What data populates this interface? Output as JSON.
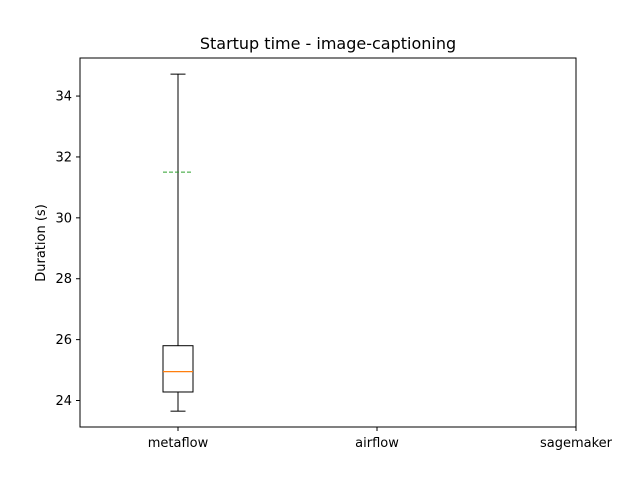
{
  "chart_data": {
    "type": "box",
    "title": "Startup time - image-captioning",
    "xlabel": "",
    "ylabel": "Duration (s)",
    "categories": [
      "metaflow",
      "airflow",
      "sagemaker"
    ],
    "ylim": [
      23.13,
      35.25
    ],
    "yticks": [
      24,
      26,
      28,
      30,
      32,
      34
    ],
    "grid": false,
    "boxes": [
      {
        "category": "metaflow",
        "whisker_low": 23.65,
        "q1": 24.28,
        "median": 24.95,
        "q3": 25.8,
        "whisker_high": 34.72,
        "mean": 31.5
      }
    ],
    "colors": {
      "box": "#000000",
      "median": "#ff7f0e",
      "mean": "#2ca02c"
    }
  }
}
